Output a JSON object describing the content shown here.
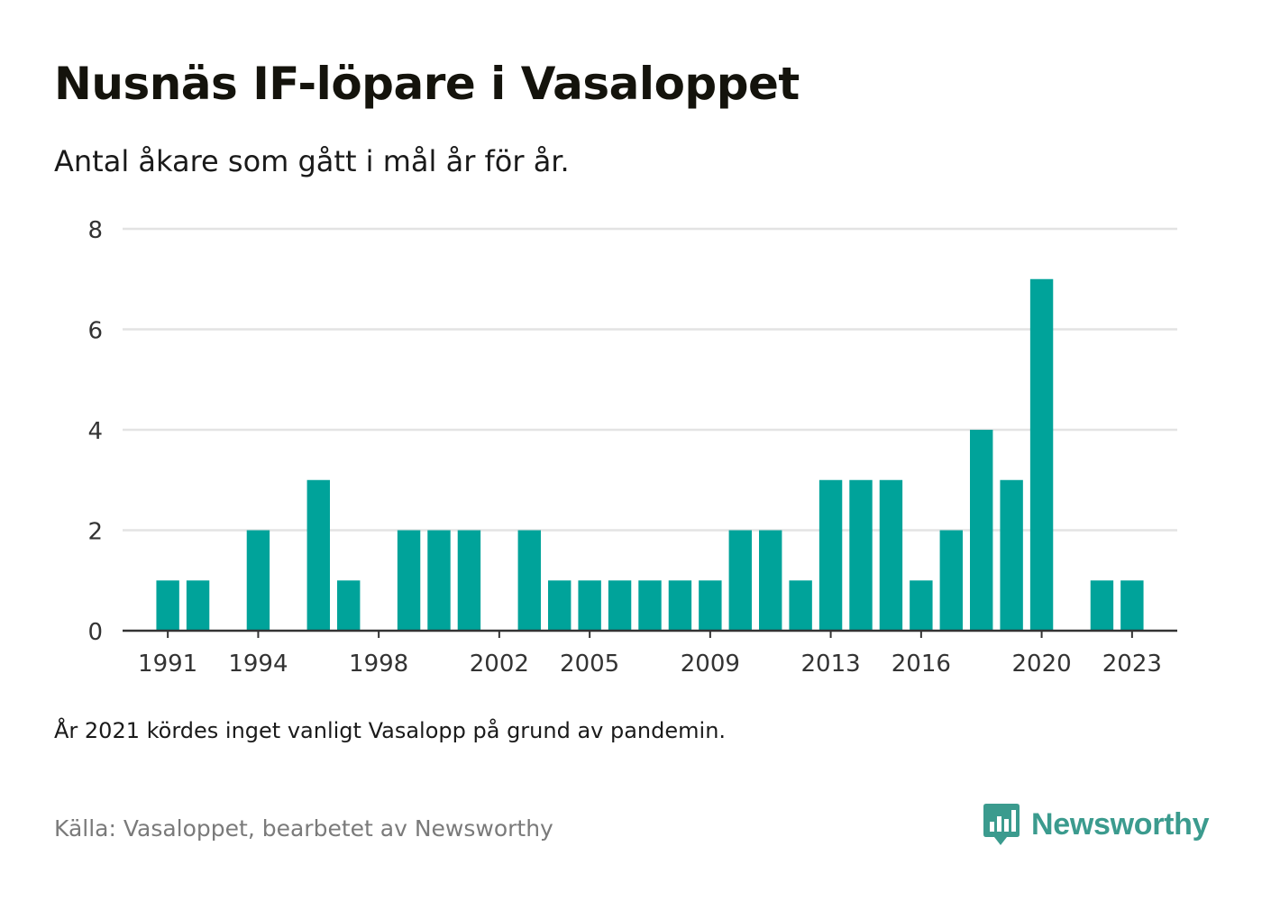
{
  "title": "Nusnäs IF-löpare i Vasaloppet",
  "subtitle": "Antal åkare som gått i mål år för år.",
  "note": "År 2021 kördes inget vanligt Vasalopp på grund av pandemin.",
  "source": "Källa: Vasaloppet, bearbetet av Newsworthy",
  "brand": {
    "name": "Newsworthy",
    "icon": "newsworthy-logo-icon",
    "color": "#3b9b8e"
  },
  "chart_data": {
    "type": "bar",
    "title": "",
    "xlabel": "",
    "ylabel": "",
    "categories": [
      1990,
      1991,
      1992,
      1993,
      1994,
      1995,
      1996,
      1997,
      1998,
      1999,
      2000,
      2001,
      2002,
      2003,
      2004,
      2005,
      2006,
      2007,
      2008,
      2009,
      2010,
      2011,
      2012,
      2013,
      2014,
      2015,
      2016,
      2017,
      2018,
      2019,
      2020,
      2021,
      2022,
      2023,
      2024
    ],
    "values": [
      0,
      1,
      1,
      0,
      2,
      0,
      3,
      1,
      0,
      2,
      2,
      2,
      0,
      2,
      1,
      1,
      1,
      1,
      1,
      1,
      2,
      2,
      1,
      3,
      3,
      3,
      1,
      2,
      4,
      3,
      7,
      0,
      1,
      1,
      0
    ],
    "x_tick_labels": [
      "1991",
      "1994",
      "1998",
      "2002",
      "2005",
      "2009",
      "2013",
      "2016",
      "2020",
      "2023"
    ],
    "y_ticks": [
      0,
      2,
      4,
      6,
      8
    ],
    "ylim": [
      0,
      8
    ],
    "grid": true,
    "bar_color": "#00a39a",
    "grid_color": "#e3e3e3",
    "axis_color": "#333333"
  }
}
